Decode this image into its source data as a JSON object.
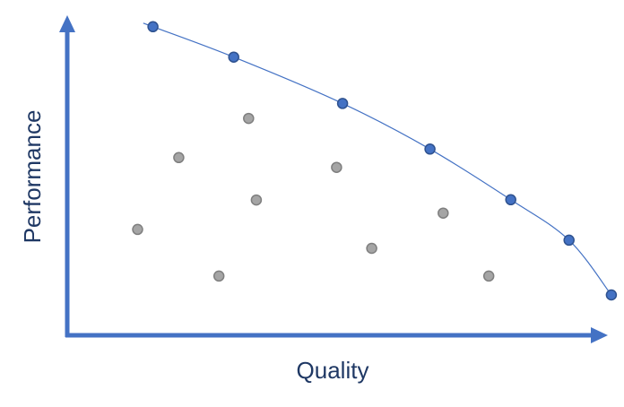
{
  "chart_data": {
    "type": "scatter",
    "title": "",
    "xlabel": "Quality",
    "ylabel": "Performance",
    "xlim": [
      0,
      100
    ],
    "ylim": [
      0,
      100
    ],
    "grid": false,
    "ticks": false,
    "series": [
      {
        "role": "frontier",
        "color": "#4472c4",
        "connected": true,
        "points": [
          {
            "x": 15.6,
            "y": 95.1
          },
          {
            "x": 30.3,
            "y": 85.8
          },
          {
            "x": 50.1,
            "y": 71.6
          },
          {
            "x": 66.0,
            "y": 57.6
          },
          {
            "x": 80.7,
            "y": 42.1
          },
          {
            "x": 91.3,
            "y": 29.7
          },
          {
            "x": 99.0,
            "y": 12.9
          }
        ]
      },
      {
        "role": "dominated",
        "color": "#a5a5a5",
        "connected": false,
        "points": [
          {
            "x": 20.3,
            "y": 55.0
          },
          {
            "x": 33.0,
            "y": 67.0
          },
          {
            "x": 12.8,
            "y": 33.0
          },
          {
            "x": 27.6,
            "y": 18.7
          },
          {
            "x": 34.4,
            "y": 42.0
          },
          {
            "x": 49.0,
            "y": 52.0
          },
          {
            "x": 55.4,
            "y": 27.2
          },
          {
            "x": 68.4,
            "y": 38.0
          },
          {
            "x": 76.7,
            "y": 18.7
          }
        ]
      }
    ]
  }
}
